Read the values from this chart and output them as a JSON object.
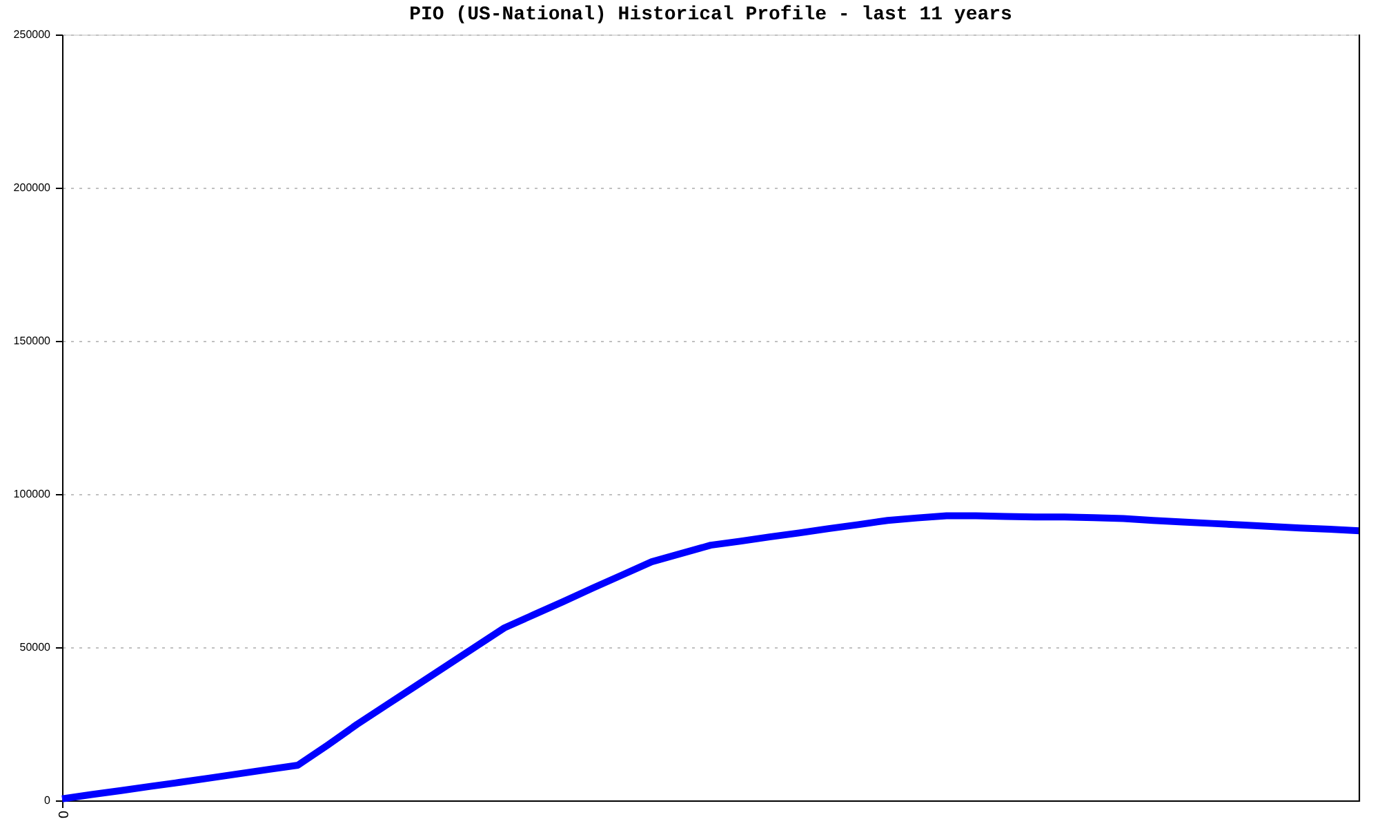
{
  "chart_data": {
    "type": "line",
    "title": "PIO (US-National) Historical Profile - last 11 years",
    "categories": [
      "0",
      null,
      null,
      null,
      null,
      null,
      null,
      null,
      null,
      null,
      null,
      null,
      null,
      null,
      null,
      null,
      null,
      null,
      null,
      null,
      null,
      null,
      null,
      null,
      null,
      null,
      null,
      null,
      null,
      null,
      null,
      null,
      null,
      null,
      null,
      null,
      null,
      null,
      null,
      null,
      null,
      null,
      null,
      null,
      null
    ],
    "series": [
      {
        "color": "#0000ff",
        "values": [
          500,
          1900,
          3200,
          4600,
          5900,
          7300,
          8700,
          10100,
          11500,
          18000,
          24800,
          31100,
          37400,
          43700,
          50000,
          56300,
          60600,
          64900,
          69300,
          73600,
          77900,
          80600,
          83300,
          84600,
          86000,
          87300,
          88700,
          90000,
          91400,
          92200,
          92900,
          92900,
          92700,
          92500,
          92500,
          92300,
          92000,
          91400,
          90900,
          90400,
          89900,
          89400,
          88900,
          88500,
          88000
        ]
      }
    ],
    "ylim": [
      0,
      250000
    ],
    "yticks": [
      0,
      50000,
      100000,
      150000,
      200000,
      250000
    ],
    "grid": "y",
    "line_style": "solid"
  }
}
